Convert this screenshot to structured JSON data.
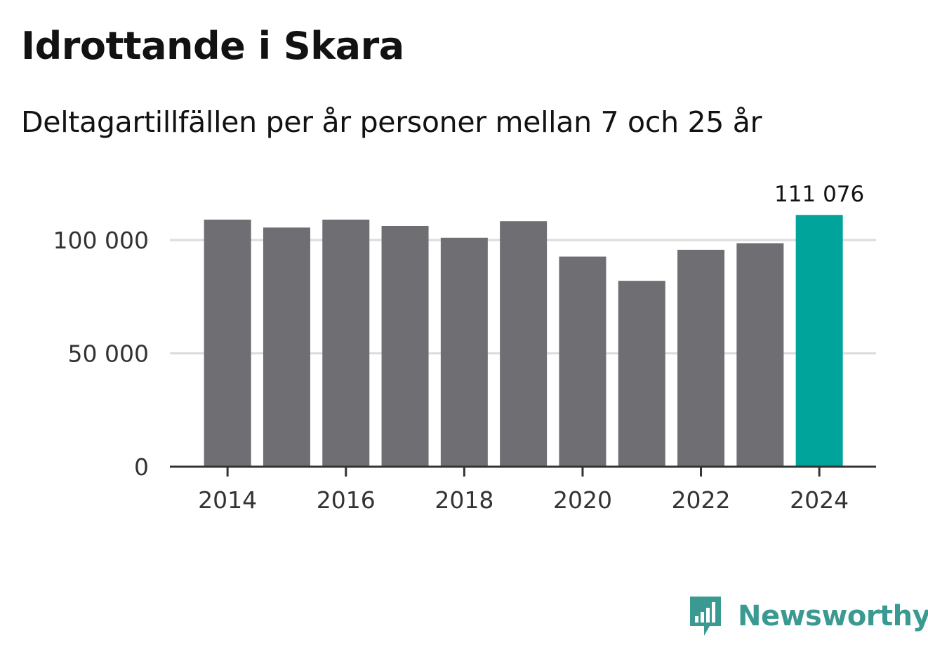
{
  "header": {
    "title": "Idrottande i Skara",
    "subtitle": "Deltagartillfällen per år personer mellan 7 och 25 år"
  },
  "brand": {
    "name": "Newsworthy",
    "logo_icon": "bar-chart-speech-bubble-icon"
  },
  "colors": {
    "bar_default": "#6f6e73",
    "bar_highlight": "#00a49a",
    "gridline": "#dcdcdc",
    "axis": "#333333",
    "brand": "#3a9a91"
  },
  "chart_data": {
    "type": "bar",
    "categories": [
      "2014",
      "2015",
      "2016",
      "2017",
      "2018",
      "2019",
      "2020",
      "2021",
      "2022",
      "2023",
      "2024"
    ],
    "values": [
      109000,
      105500,
      109000,
      106200,
      101000,
      108300,
      92700,
      82000,
      95700,
      98600,
      111076
    ],
    "highlight_index": 10,
    "highlight_label": "111 076",
    "x_tick_labels": [
      "2014",
      "2016",
      "2018",
      "2020",
      "2022",
      "2024"
    ],
    "y_ticks": [
      0,
      50000,
      100000
    ],
    "y_tick_labels": [
      "0",
      "50 000",
      "100 000"
    ],
    "ylim": [
      0,
      120000
    ],
    "grid": true,
    "legend": "none",
    "xlabel": "",
    "ylabel": ""
  }
}
